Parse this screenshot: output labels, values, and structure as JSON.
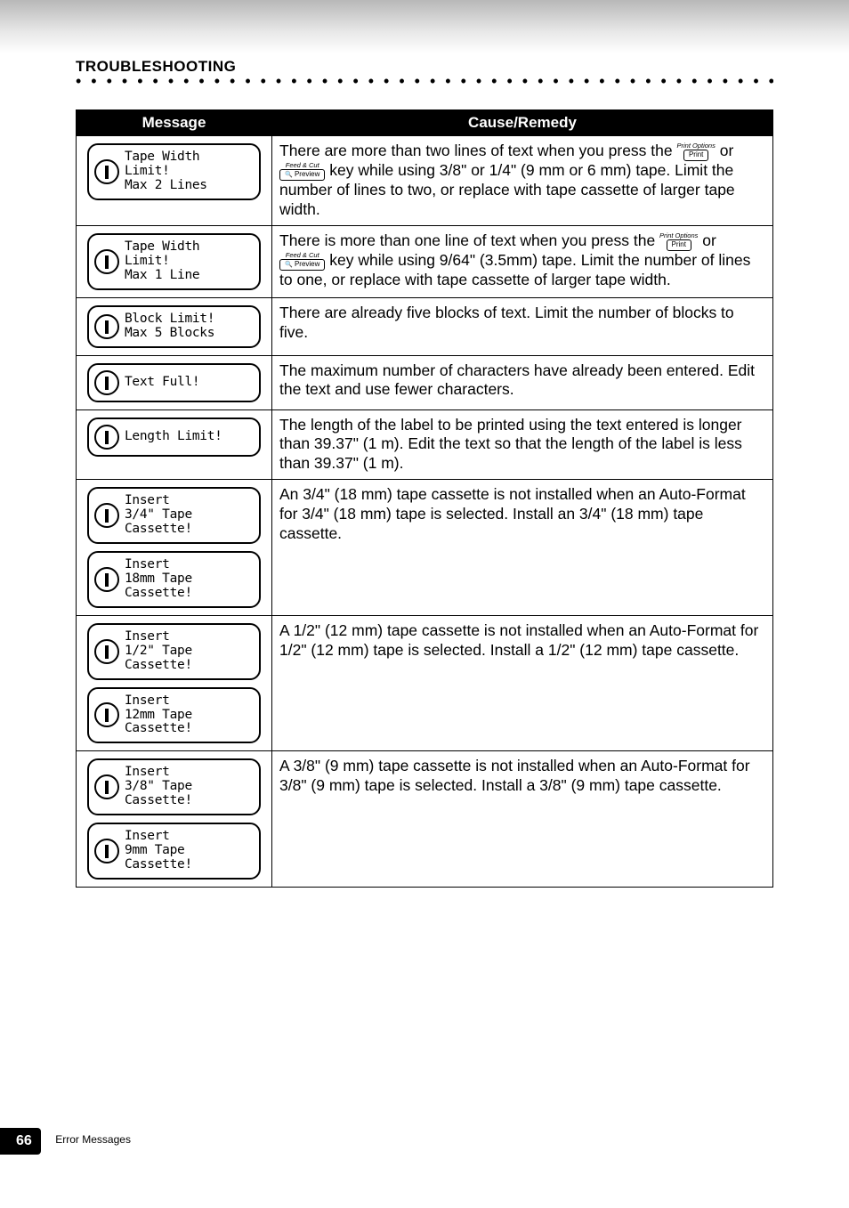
{
  "section_title": "TROUBLESHOOTING",
  "table": {
    "col_message": "Message",
    "col_remedy": "Cause/Remedy"
  },
  "keys": {
    "print_top": "Print Options",
    "print_box": "Print",
    "preview_top": "Feed & Cut",
    "preview_box": "Preview"
  },
  "rows": [
    {
      "lcds": [
        {
          "text": "Tape Width\nLimit!\nMax 2 Lines"
        }
      ],
      "remedy_pre": "There are more than two lines of text when you press the ",
      "has_keys": true,
      "remedy_post": " key while using 3/8\" or 1/4\" (9 mm or 6 mm) tape. Limit the number of lines to two, or replace with tape cassette of larger tape width."
    },
    {
      "lcds": [
        {
          "text": "Tape Width\nLimit!\nMax 1 Line"
        }
      ],
      "remedy_pre": "There is more than one line of text when you press the ",
      "has_keys": true,
      "remedy_post": " key while using 9/64\" (3.5mm) tape. Limit the number of lines to one, or replace with tape cassette of larger tape width."
    },
    {
      "lcds": [
        {
          "text": "Block Limit!\nMax 5 Blocks"
        }
      ],
      "remedy_pre": "There are already five blocks of text. Limit the number of blocks to five.",
      "has_keys": false,
      "remedy_post": ""
    },
    {
      "lcds": [
        {
          "text": "Text Full!"
        }
      ],
      "remedy_pre": "The maximum number of characters have already been entered. Edit the text and use fewer characters.",
      "has_keys": false,
      "remedy_post": ""
    },
    {
      "lcds": [
        {
          "text": "Length Limit!"
        }
      ],
      "remedy_pre": "The length of the label to be printed using the text entered is longer than 39.37\" (1 m). Edit the text so that the length of the label is less than 39.37\" (1 m).",
      "has_keys": false,
      "remedy_post": ""
    },
    {
      "lcds": [
        {
          "text": "Insert\n3/4\" Tape\nCassette!"
        },
        {
          "text": "Insert\n18mm Tape\nCassette!"
        }
      ],
      "remedy_pre": "An 3/4\" (18 mm) tape cassette is not installed when an Auto-Format for 3/4\" (18 mm) tape is selected. Install an 3/4\" (18 mm) tape cassette.",
      "has_keys": false,
      "remedy_post": ""
    },
    {
      "lcds": [
        {
          "text": "Insert\n1/2\" Tape\nCassette!"
        },
        {
          "text": "Insert\n12mm Tape\nCassette!"
        }
      ],
      "remedy_pre": "A 1/2\" (12 mm) tape cassette is not installed when an Auto-Format for 1/2\" (12 mm) tape is selected. Install a 1/2\" (12 mm) tape cassette.",
      "has_keys": false,
      "remedy_post": ""
    },
    {
      "lcds": [
        {
          "text": "Insert\n3/8\" Tape\nCassette!"
        },
        {
          "text": "Insert\n9mm Tape\nCassette!"
        }
      ],
      "remedy_pre": "A 3/8\" (9 mm) tape cassette is not installed when an Auto-Format for 3/8\" (9 mm) tape is selected. Install a 3/8\" (9 mm) tape cassette.",
      "has_keys": false,
      "remedy_post": ""
    }
  ],
  "footer": {
    "page": "66",
    "label": "Error Messages"
  }
}
